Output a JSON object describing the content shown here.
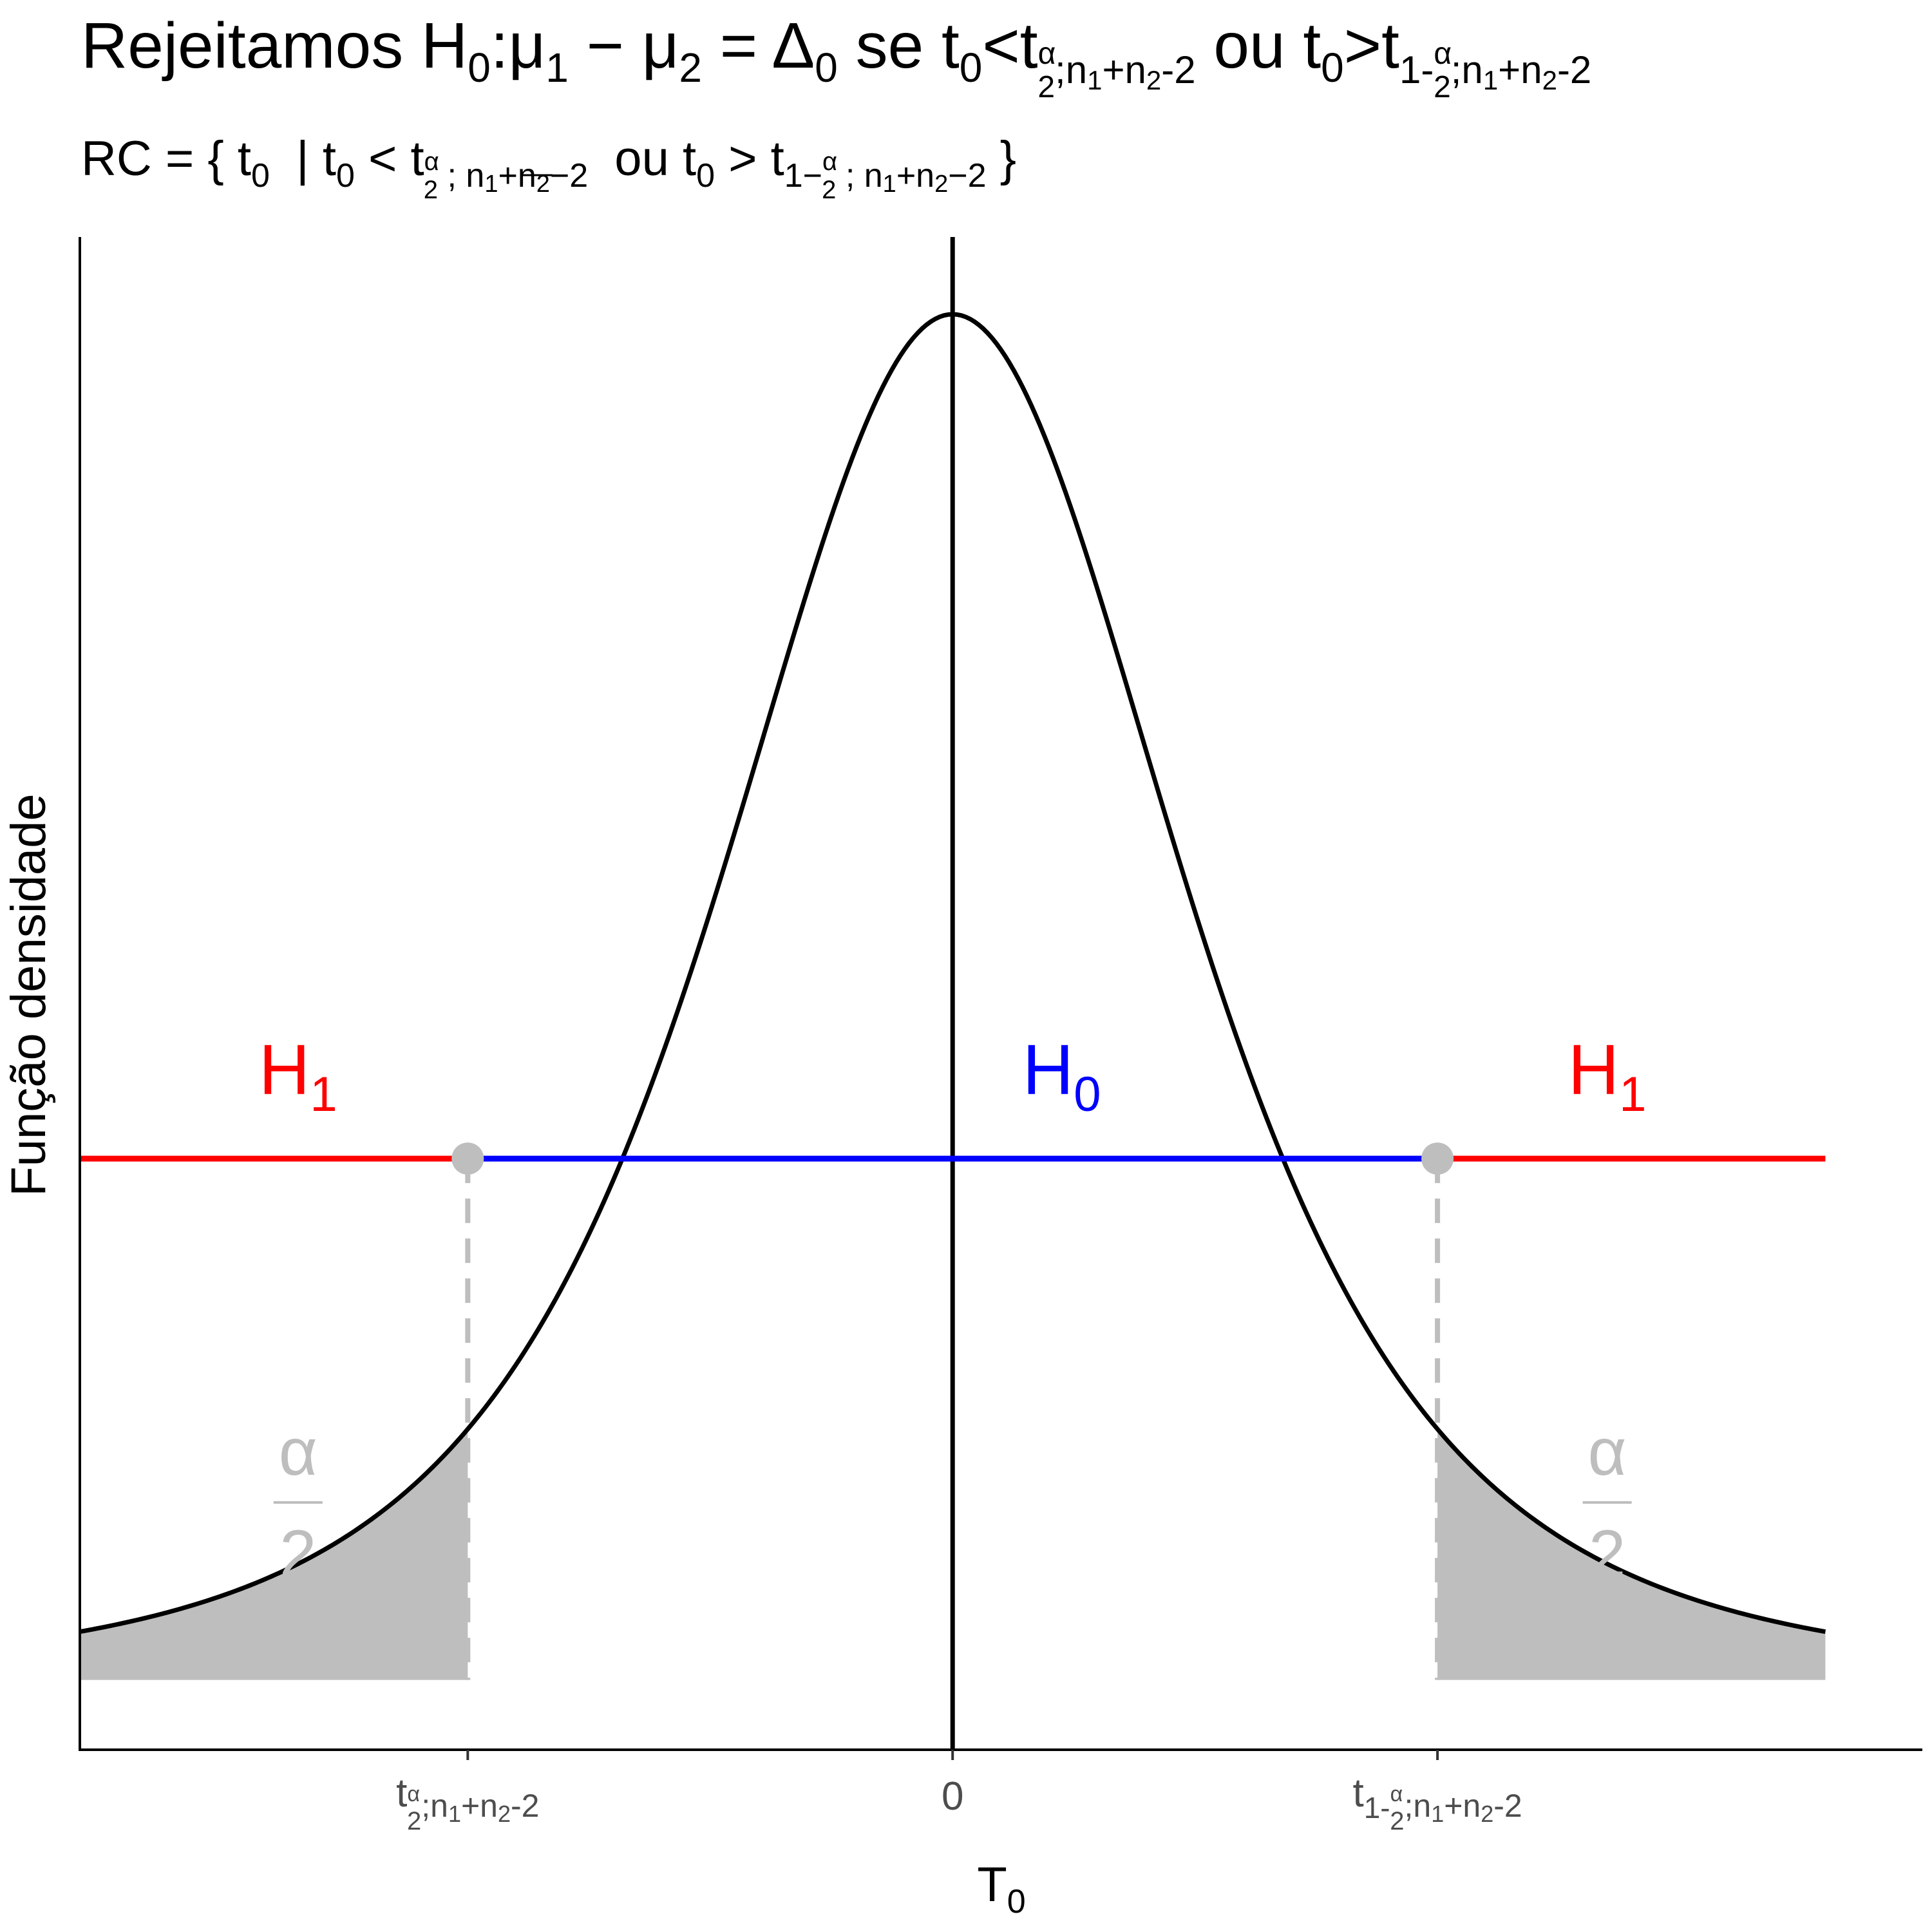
{
  "chart_data": {
    "type": "line",
    "distribution": "Student t density, two-tailed test",
    "title": {
      "prefix": "Rejeitamos H",
      "h_sub": "0",
      "colon": ":μ",
      "mu1_sub": "1",
      "minus": " − μ",
      "mu2_sub": "2",
      "eq": " = Δ",
      "delta_sub": "0",
      "se": " se t",
      "t0_sub": "0",
      "lt": "<t",
      "sub_alpha": "α",
      "sub_two": "2",
      "sub_rest": ";n",
      "n_one": "1",
      "plus": "+n",
      "n_two": "2",
      "minus2": "-2",
      "ou": " ou t",
      "t0_sub_b": "0",
      "gt": ">t",
      "one_minus": "1-",
      "sub_alpha_b": "α",
      "sub_two_b": "2",
      "sub_rest_b": ";n",
      "n_one_b": "1",
      "plus_b": "+n",
      "n_two_b": "2",
      "minus2_b": "-2"
    },
    "subtitle": {
      "rc": "RC = { t",
      "t0_sub": "0",
      "bar": " | t",
      "t0_sub_b": "0",
      "lt": " < t",
      "alpha": "α",
      "two": "2",
      "semi": " ; n",
      "n1": "1",
      "plus": "+n",
      "n2": "2",
      "minus2": "−2",
      "ou": " ou t",
      "t0_sub_c": "0",
      "gt": " > t",
      "one_minus": "1−",
      "alpha_b": "α",
      "two_b": "2",
      "semi_b": " ; n",
      "n1_b": "1",
      "plus_b": "+n",
      "n2_b": "2",
      "minus2_b": "−2",
      "close": " }"
    },
    "x_axis": {
      "label_main": "T",
      "label_sub": "0",
      "ticks": [
        {
          "value": -2,
          "main": "t",
          "frac_num": "α",
          "frac_den": "2",
          "rest": ";n",
          "n1": "1",
          "plus": "+n",
          "n2": "2",
          "tail": "-2"
        },
        {
          "value": 0,
          "main": "0"
        },
        {
          "value": 2,
          "main": "t",
          "prefix": "1-",
          "frac_num": "α",
          "frac_den": "2",
          "rest": ";n",
          "n1": "1",
          "plus": "+n",
          "n2": "2",
          "tail": "-2"
        }
      ],
      "xlim": [
        -3.6,
        4.0
      ]
    },
    "y_axis": {
      "label": "Função densidade",
      "ylim": [
        -0.03,
        0.62
      ]
    },
    "density_curve": {
      "x_min": -3.6,
      "x_max": 3.6,
      "color": "#000000",
      "peak": 0.5868
    },
    "critical_values": [
      -2,
      2
    ],
    "rejection_area_color": "#bebebe",
    "regions": [
      {
        "label": "H",
        "sub": "1",
        "from": -3.6,
        "to": -2,
        "color": "#ff0000"
      },
      {
        "label": "H",
        "sub": "0",
        "from": -2,
        "to": 2,
        "color": "#0000ff"
      },
      {
        "label": "H",
        "sub": "1",
        "from": 2,
        "to": 3.6,
        "color": "#ff0000"
      }
    ],
    "region_line_y": 0.224,
    "region_label_x": [
      -2.7,
      0.45,
      2.7
    ],
    "tail_label": {
      "numerator": "α",
      "denominator": "2",
      "x": [
        -2.7,
        2.7
      ]
    },
    "vertical_line_x": 0,
    "grid": false,
    "legend": "none"
  }
}
